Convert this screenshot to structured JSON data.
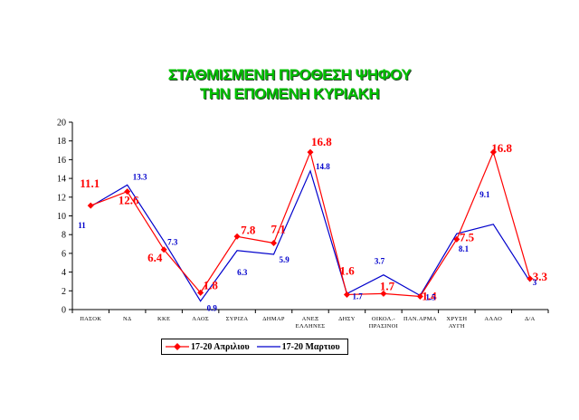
{
  "chart_data": {
    "type": "line",
    "title_lines": [
      "ΣΤΑΘΜΙΣΜΕΝΗ ΠΡΟΘΕΣΗ ΨΗΦΟΥ",
      "ΤΗΝ ΕΠΟΜΕΝΗ ΚΥΡΙΑΚΗ"
    ],
    "categories": [
      "ΠΑΣΟΚ",
      "ΝΔ",
      "ΚΚΕ",
      "ΛΑΟΣ",
      "ΣΥΡΙΖΑ",
      "ΔΗΜΑΡ",
      "ΑΝΕΞ ΕΛΛΗΝΕΣ",
      "ΔΗΣΥ",
      "ΟΙΚΟΛ.- ΠΡΑΣΙΝΟΙ",
      "ΠΑΝ.ΑΡΜΑ",
      "ΧΡΥΣΗ ΑΥΓΗ",
      "ΑΛΛΟ",
      "Δ/Α"
    ],
    "series": [
      {
        "name": "17-20 Απριλιου",
        "color": "#ff0000",
        "marker": "diamond",
        "values": [
          11.1,
          12.6,
          6.4,
          1.8,
          7.8,
          7.1,
          16.8,
          1.6,
          1.7,
          1.4,
          7.5,
          16.8,
          3.3
        ],
        "labels": [
          "11.1",
          "12.6",
          "6.4",
          "1.8",
          "7.8",
          "7.1",
          "16.8",
          "1.6",
          "1.7",
          "1.4",
          "7.5",
          "16.8",
          "3.3"
        ]
      },
      {
        "name": "17-20 Μαρτιου",
        "color": "#0000cc",
        "marker": "none",
        "values": [
          11,
          13.3,
          7.3,
          0.9,
          6.3,
          5.9,
          14.8,
          1.7,
          3.7,
          1.5,
          8.1,
          9.1,
          3
        ],
        "labels": [
          "11",
          "13.3",
          "7.3",
          "0.9",
          "6.3",
          "5.9",
          "14.8",
          "1.7",
          "3.7",
          "1.5",
          "8.1",
          "9.1",
          "3"
        ]
      }
    ],
    "y_ticks": [
      "0",
      "2",
      "4",
      "6",
      "8",
      "10",
      "12",
      "14",
      "16",
      "18",
      "20"
    ],
    "ylim": [
      0,
      20
    ],
    "grid": false,
    "legend_position": "bottom-center"
  }
}
